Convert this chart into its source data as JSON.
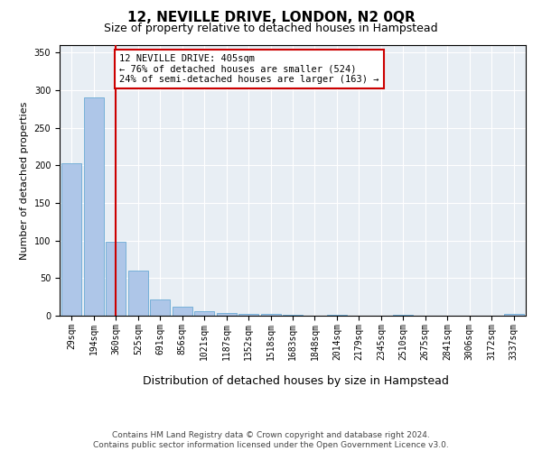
{
  "title": "12, NEVILLE DRIVE, LONDON, N2 0QR",
  "subtitle": "Size of property relative to detached houses in Hampstead",
  "xlabel": "Distribution of detached houses by size in Hampstead",
  "ylabel": "Number of detached properties",
  "bar_values": [
    203,
    290,
    98,
    60,
    22,
    12,
    6,
    4,
    3,
    2,
    1,
    0,
    1,
    0,
    0,
    1,
    0,
    0,
    0,
    0,
    2
  ],
  "bar_labels": [
    "29sqm",
    "194sqm",
    "360sqm",
    "525sqm",
    "691sqm",
    "856sqm",
    "1021sqm",
    "1187sqm",
    "1352sqm",
    "1518sqm",
    "1683sqm",
    "1848sqm",
    "2014sqm",
    "2179sqm",
    "2345sqm",
    "2510sqm",
    "2675sqm",
    "2841sqm",
    "3006sqm",
    "3172sqm",
    "3337sqm"
  ],
  "bar_color": "#aec6e8",
  "bar_edge_color": "#6aaad4",
  "vline_index": 2,
  "vline_color": "#cc0000",
  "annotation_text": "12 NEVILLE DRIVE: 405sqm\n← 76% of detached houses are smaller (524)\n24% of semi-detached houses are larger (163) →",
  "annotation_box_color": "#ffffff",
  "annotation_box_edge": "#cc0000",
  "ylim": [
    0,
    360
  ],
  "yticks": [
    0,
    50,
    100,
    150,
    200,
    250,
    300,
    350
  ],
  "bg_color": "#e8eef4",
  "footer_line1": "Contains HM Land Registry data © Crown copyright and database right 2024.",
  "footer_line2": "Contains public sector information licensed under the Open Government Licence v3.0.",
  "title_fontsize": 11,
  "subtitle_fontsize": 9,
  "xlabel_fontsize": 9,
  "ylabel_fontsize": 8,
  "tick_fontsize": 7,
  "annotation_fontsize": 7.5,
  "footer_fontsize": 6.5
}
